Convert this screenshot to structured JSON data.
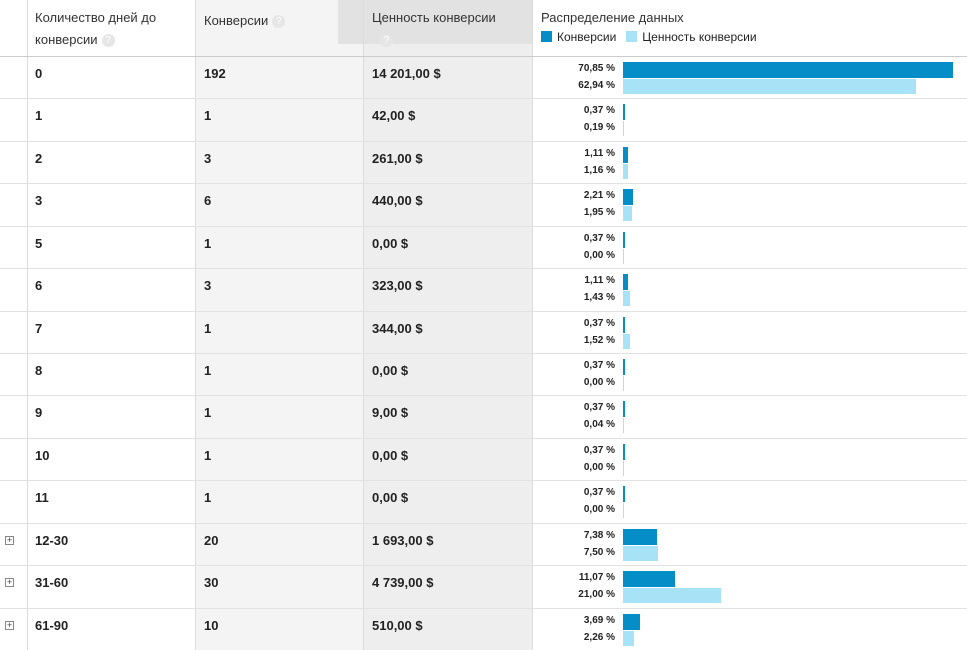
{
  "table": {
    "headers": [
      "Количество дней до конверсии",
      "Конверсии",
      "Ценность конверсии",
      "Распределение данных"
    ],
    "legend": [
      {
        "name": "Конверсии",
        "color": "#058dc7"
      },
      {
        "name": "Ценность конверсии",
        "color": "#a8e2f6"
      }
    ],
    "rows": [
      {
        "days": "0",
        "conversions": 192,
        "value": "14 201,00 $",
        "conv_share": 70.85,
        "conv_share_label": "70,85 %",
        "value_share": 62.94,
        "value_share_label": "62,94 %",
        "expandable": false
      },
      {
        "days": "1",
        "conversions": 1,
        "value": "42,00 $",
        "conv_share": 0.37,
        "conv_share_label": "0,37 %",
        "value_share": 0.19,
        "value_share_label": "0,19 %",
        "expandable": false
      },
      {
        "days": "2",
        "conversions": 3,
        "value": "261,00 $",
        "conv_share": 1.11,
        "conv_share_label": "1,11 %",
        "value_share": 1.16,
        "value_share_label": "1,16 %",
        "expandable": false
      },
      {
        "days": "3",
        "conversions": 6,
        "value": "440,00 $",
        "conv_share": 2.21,
        "conv_share_label": "2,21 %",
        "value_share": 1.95,
        "value_share_label": "1,95 %",
        "expandable": false
      },
      {
        "days": "5",
        "conversions": 1,
        "value": "0,00 $",
        "conv_share": 0.37,
        "conv_share_label": "0,37 %",
        "value_share": 0,
        "value_share_label": "0,00 %",
        "expandable": false
      },
      {
        "days": "6",
        "conversions": 3,
        "value": "323,00 $",
        "conv_share": 1.11,
        "conv_share_label": "1,11 %",
        "value_share": 1.43,
        "value_share_label": "1,43 %",
        "expandable": false
      },
      {
        "days": "7",
        "conversions": 1,
        "value": "344,00 $",
        "conv_share": 0.37,
        "conv_share_label": "0,37 %",
        "value_share": 1.52,
        "value_share_label": "1,52 %",
        "expandable": false
      },
      {
        "days": "8",
        "conversions": 1,
        "value": "0,00 $",
        "conv_share": 0.37,
        "conv_share_label": "0,37 %",
        "value_share": 0,
        "value_share_label": "0,00 %",
        "expandable": false
      },
      {
        "days": "9",
        "conversions": 1,
        "value": "9,00 $",
        "conv_share": 0.37,
        "conv_share_label": "0,37 %",
        "value_share": 0.04,
        "value_share_label": "0,04 %",
        "expandable": false
      },
      {
        "days": "10",
        "conversions": 1,
        "value": "0,00 $",
        "conv_share": 0.37,
        "conv_share_label": "0,37 %",
        "value_share": 0,
        "value_share_label": "0,00 %",
        "expandable": false
      },
      {
        "days": "11",
        "conversions": 1,
        "value": "0,00 $",
        "conv_share": 0.37,
        "conv_share_label": "0,37 %",
        "value_share": 0,
        "value_share_label": "0,00 %",
        "expandable": false
      },
      {
        "days": "12-30",
        "conversions": 20,
        "value": "1 693,00 $",
        "conv_share": 7.38,
        "conv_share_label": "7,38 %",
        "value_share": 7.5,
        "value_share_label": "7,50 %",
        "expandable": true
      },
      {
        "days": "31-60",
        "conversions": 30,
        "value": "4 739,00 $",
        "conv_share": 11.07,
        "conv_share_label": "11,07 %",
        "value_share": 21,
        "value_share_label": "21,00 %",
        "expandable": true
      },
      {
        "days": "61-90",
        "conversions": 10,
        "value": "510,00 $",
        "conv_share": 3.69,
        "conv_share_label": "3,69 %",
        "value_share": 2.26,
        "value_share_label": "2,26 %",
        "expandable": true
      }
    ]
  }
}
